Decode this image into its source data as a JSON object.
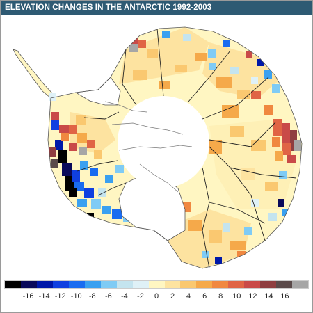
{
  "title": "ELEVATION CHANGES IN THE ANTARCTIC 1992-2003",
  "colors": {
    "title_bar": "#2e5a73",
    "hole": "#ffffff",
    "coast_line": "#555555",
    "basin_line": "#222222"
  },
  "legend": {
    "colors": [
      "#000000",
      "#0a0a5a",
      "#0018a8",
      "#1040e0",
      "#1a6cf0",
      "#3aa0f0",
      "#7fcbf5",
      "#c4e4ef",
      "#dff1f7",
      "#fff6c2",
      "#fde3a0",
      "#fac870",
      "#f5a94a",
      "#f08840",
      "#e06445",
      "#c94a48",
      "#8f3e40",
      "#5a4a4a",
      "#a6a6a6"
    ],
    "labels": [
      "-16",
      "-14",
      "-12",
      "-10",
      "-8",
      "-6",
      "-4",
      "-2",
      "0",
      "2",
      "4",
      "6",
      "8",
      "10",
      "12",
      "14",
      "16"
    ]
  }
}
